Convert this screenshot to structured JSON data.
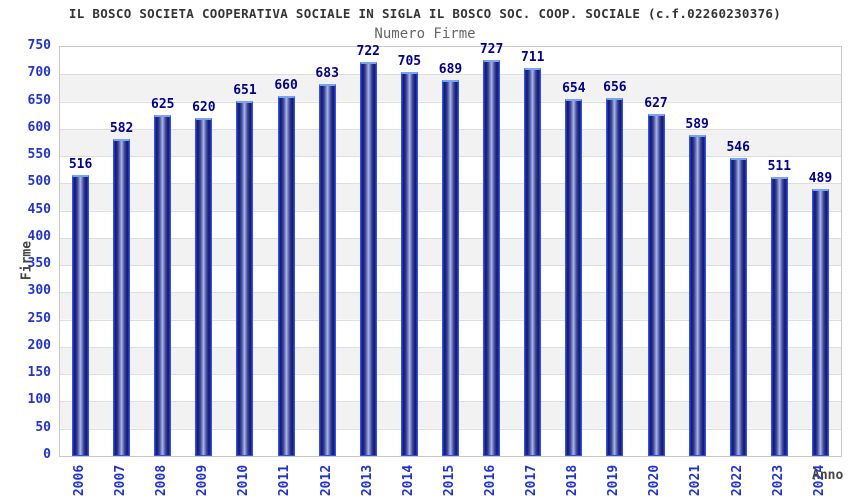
{
  "header": {
    "title": "IL BOSCO SOCIETA COOPERATIVA SOCIALE IN SIGLA IL BOSCO SOC. COOP. SOCIALE (c.f.02260230376)",
    "subtitle": "Numero Firme"
  },
  "chart_data": {
    "type": "bar",
    "title": "Numero Firme",
    "xlabel": "Anno",
    "ylabel": "Firme",
    "categories": [
      "2006",
      "2007",
      "2008",
      "2009",
      "2010",
      "2011",
      "2012",
      "2013",
      "2014",
      "2015",
      "2016",
      "2017",
      "2018",
      "2019",
      "2020",
      "2021",
      "2022",
      "2023",
      "2024"
    ],
    "values": [
      516,
      582,
      625,
      620,
      651,
      660,
      683,
      722,
      705,
      689,
      727,
      711,
      654,
      656,
      627,
      589,
      546,
      511,
      489
    ],
    "ylim": [
      0,
      750
    ],
    "y_tick_step": 50,
    "grid": true,
    "legend": "none",
    "band_fill": "alternating horizontal bands every 50 units",
    "colors": {
      "tick_label": "#2233cc",
      "value_label": "#00008b",
      "bar_outline": "#2e52e8",
      "bar_top_edge": "#78a4f4",
      "bar_dark": "#16166a",
      "bar_light": "#aeb6e2",
      "grid_line": "#dddddd",
      "band_gray": "#f2f2f3",
      "title_text": "#333333",
      "subtitle_text": "#666666",
      "axis_title_text": "#444444"
    }
  }
}
